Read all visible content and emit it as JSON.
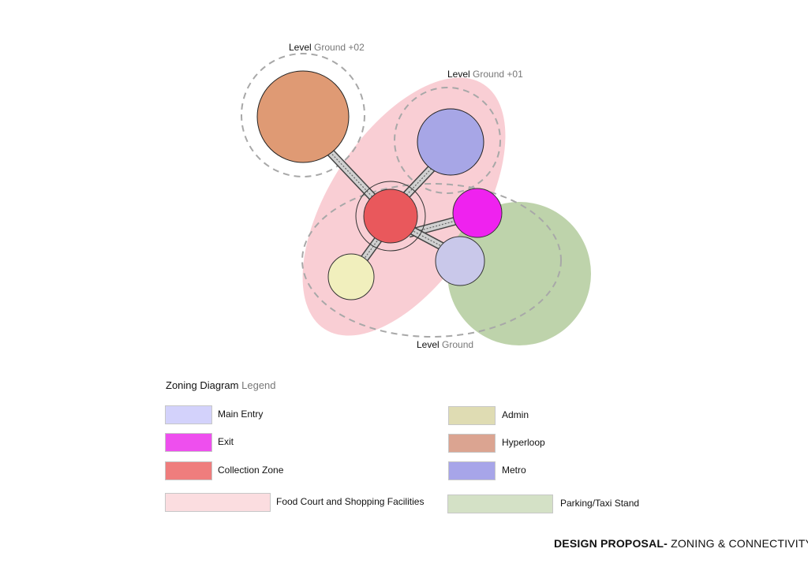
{
  "levels": {
    "ground_plus_02": {
      "prefix": "Level",
      "suffix": "Ground +02"
    },
    "ground_plus_01": {
      "prefix": "Level",
      "suffix": "Ground +01"
    },
    "ground": {
      "prefix": "Level",
      "suffix": "Ground"
    }
  },
  "legend": {
    "title_prefix": "Zoning Diagram",
    "title_suffix": "Legend",
    "items": [
      {
        "label": "Main Entry",
        "color": "#d3d2fb"
      },
      {
        "label": "Exit",
        "color": "#ee4fee"
      },
      {
        "label": "Collection Zone",
        "color": "#ef7d7d"
      },
      {
        "label": "Food Court and Shopping Facilities",
        "color": "#fbdde0"
      },
      {
        "label": "Admin",
        "color": "#dfdcb3"
      },
      {
        "label": "Hyperloop",
        "color": "#dba491"
      },
      {
        "label": "Metro",
        "color": "#a7a5e9"
      },
      {
        "label": "Parking/Taxi Stand",
        "color": "#d4e1c6"
      }
    ]
  },
  "nodes": {
    "hyperloop": {
      "color": "#df9a74"
    },
    "metro": {
      "color": "#a7a6e6"
    },
    "collection": {
      "color": "#e9585c"
    },
    "exit": {
      "color": "#ef22ef"
    },
    "main_entry": {
      "color": "#c9c8ea"
    },
    "admin": {
      "color": "#f1efbd"
    },
    "parking": {
      "color": "#b3cb9c"
    },
    "food_court": {
      "color": "#f8c9cf"
    }
  },
  "footer": {
    "bold": "DESIGN PROPOSAL-",
    "rest": " ZONING & CONNECTIVITY"
  }
}
